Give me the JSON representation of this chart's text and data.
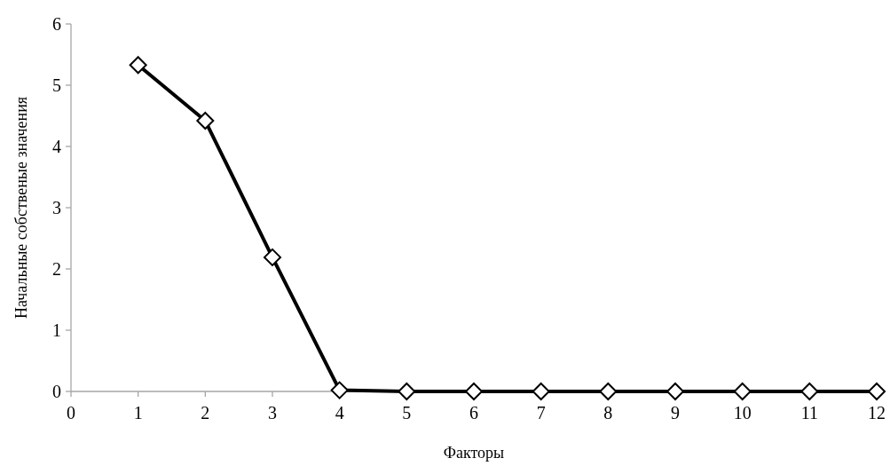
{
  "chart_data": {
    "type": "line",
    "xlabel": "Факторы",
    "ylabel": "Начальные собственые значения",
    "x": [
      1,
      2,
      3,
      4,
      5,
      6,
      7,
      8,
      9,
      10,
      11,
      12
    ],
    "series": [
      {
        "color": "#000000",
        "values": [
          5.33,
          4.42,
          2.19,
          0.02,
          0,
          0,
          0,
          0,
          0,
          0,
          0,
          0
        ]
      }
    ],
    "xlim": [
      0,
      12
    ],
    "xticks": [
      0,
      1,
      2,
      3,
      4,
      5,
      6,
      7,
      8,
      9,
      10,
      11,
      12
    ],
    "ylim": [
      0,
      6
    ],
    "yticks": [
      0,
      1,
      2,
      3,
      4,
      5,
      6
    ],
    "grid": false,
    "marker": "diamond",
    "line_style": "solid"
  }
}
